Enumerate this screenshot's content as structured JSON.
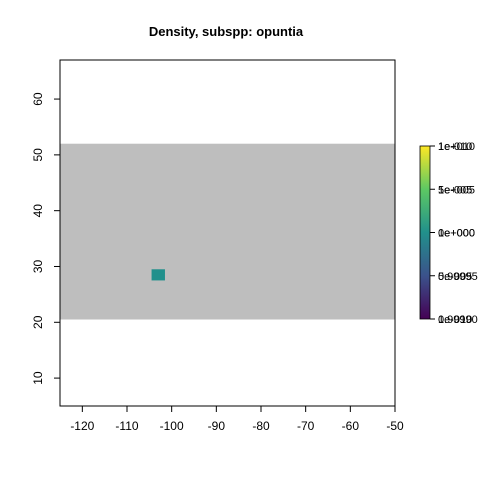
{
  "chart_data": {
    "type": "heatmap",
    "title": "Density, subspp: opuntia",
    "xlabel": "",
    "ylabel": "",
    "xlim": [
      -125,
      -50
    ],
    "ylim": [
      5,
      67
    ],
    "x_ticks": [
      -120,
      -110,
      -100,
      -90,
      -80,
      -70,
      -60,
      -50
    ],
    "y_ticks": [
      10,
      20,
      30,
      40,
      50,
      60
    ],
    "x_tick_labels": [
      "-120",
      "-110",
      "-100",
      "-90",
      "-80",
      "-70",
      "-60",
      "-50"
    ],
    "y_tick_labels": [
      "10",
      "20",
      "30",
      "40",
      "50",
      "60"
    ],
    "raster_extent": {
      "x": [
        -125,
        -50
      ],
      "y": [
        20.5,
        52
      ]
    },
    "background_color": "#bebebe",
    "cells": [
      {
        "x": [
          -104.5,
          -101.5
        ],
        "y": [
          27.5,
          29.5
        ],
        "value": 1.0,
        "color": "#21908c"
      }
    ],
    "colorbar": {
      "palette": [
        "#440154",
        "#3b528b",
        "#21908c",
        "#5dc863",
        "#fde725"
      ],
      "overlapping_labels": [
        [
          "1e-010",
          "1e+010"
        ],
        [
          "5e-005",
          "1e+005"
        ],
        [
          "1e+000",
          "0e+000"
        ],
        [
          "0.99995",
          "5e-005"
        ],
        [
          "0.99990",
          "1e-010"
        ]
      ]
    }
  }
}
